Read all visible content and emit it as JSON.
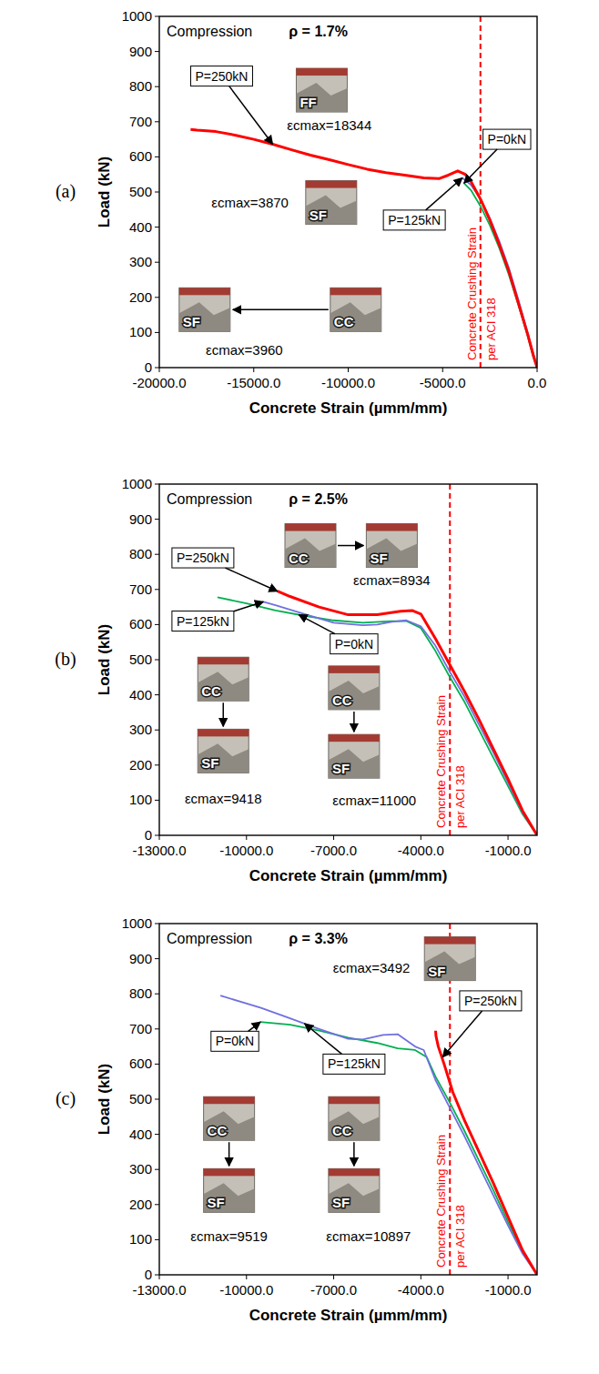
{
  "chart_data": [
    {
      "type": "line",
      "panel_label": "(a)",
      "title": "Compression",
      "subtitle": "ρ = 1.7%",
      "x_label": "Concrete Strain (µmm/mm)",
      "y_label": "Load (kN)",
      "xlim": [
        -20000,
        0
      ],
      "ylim": [
        0,
        1000
      ],
      "xticks": [
        {
          "value": -20000,
          "label": "-20000.0"
        },
        {
          "value": -15000,
          "label": "-15000.0"
        },
        {
          "value": -10000,
          "label": "-10000.0"
        },
        {
          "value": -5000,
          "label": "-5000.0"
        },
        {
          "value": 0,
          "label": "0.0"
        }
      ],
      "yticks": [
        0,
        100,
        200,
        300,
        400,
        500,
        600,
        700,
        800,
        900,
        1000
      ],
      "grid": false,
      "series": [
        {
          "name": "P=0kN",
          "color": "#00b050",
          "x": [
            0,
            -200,
            -500,
            -1000,
            -1500,
            -2000,
            -2500,
            -3000,
            -3500,
            -3870
          ],
          "values": [
            0,
            30,
            90,
            180,
            265,
            340,
            405,
            460,
            505,
            525
          ],
          "label_x": -1600,
          "label_y": 650,
          "arrow_x": -3870,
          "arrow_y": 525
        },
        {
          "name": "P=125kN",
          "color": "#7070e0",
          "x": [
            0,
            -200,
            -500,
            -1000,
            -1500,
            -2000,
            -2500,
            -3000,
            -3500,
            -3960
          ],
          "values": [
            0,
            40,
            100,
            195,
            285,
            360,
            425,
            480,
            520,
            540
          ],
          "label_x": -6500,
          "label_y": 420,
          "arrow_x": -3960,
          "arrow_y": 540
        },
        {
          "name": "P=250kN",
          "color": "#ff0000",
          "x": [
            0,
            -200,
            -500,
            -1000,
            -1500,
            -2000,
            -2500,
            -3000,
            -3500,
            -3800,
            -4200,
            -4700,
            -5200,
            -6000,
            -7000,
            -8000,
            -9000,
            -10000,
            -11000,
            -12000,
            -13000,
            -14000,
            -15000,
            -16000,
            -17000,
            -18000,
            -18344
          ],
          "values": [
            0,
            35,
            95,
            185,
            275,
            350,
            420,
            480,
            530,
            550,
            560,
            548,
            538,
            540,
            548,
            555,
            565,
            578,
            592,
            605,
            620,
            636,
            650,
            662,
            672,
            676,
            678
          ],
          "label_x": -16700,
          "label_y": 830,
          "arrow_x": -14000,
          "arrow_y": 636
        }
      ],
      "vlines": [
        {
          "x": -3000,
          "label": "Concrete Crushing Strain per ACI 318"
        }
      ],
      "annotations": [
        {
          "text": "εcmax=18344",
          "x": -11000,
          "y": 675
        },
        {
          "text": "εcmax=3870",
          "x": -15200,
          "y": 455
        },
        {
          "text": "εcmax=3960",
          "x": -15500,
          "y": 35
        }
      ],
      "photo_groups": [
        {
          "photos": [
            {
              "label": "FF",
              "x": -11400,
              "y": 790
            }
          ]
        },
        {
          "photos": [
            {
              "label": "SF",
              "x": -10900,
              "y": 470
            }
          ]
        },
        {
          "photos": [
            {
              "label": "CC",
              "x": -9600,
              "y": 165
            },
            {
              "label": "SF",
              "x": -17600,
              "y": 165
            }
          ]
        }
      ]
    },
    {
      "type": "line",
      "panel_label": "(b)",
      "title": "Compression",
      "subtitle": "ρ = 2.5%",
      "x_label": "Concrete Strain (µmm/mm)",
      "y_label": "Load (kN)",
      "xlim": [
        -13000,
        0
      ],
      "ylim": [
        0,
        1000
      ],
      "xticks": [
        {
          "value": -13000,
          "label": "-13000.0"
        },
        {
          "value": -10000,
          "label": "-10000.0"
        },
        {
          "value": -7000,
          "label": "-7000.0"
        },
        {
          "value": -4000,
          "label": "-4000.0"
        },
        {
          "value": -1000,
          "label": "-1000.0"
        }
      ],
      "yticks": [
        0,
        100,
        200,
        300,
        400,
        500,
        600,
        700,
        800,
        900,
        1000
      ],
      "grid": false,
      "series": [
        {
          "name": "P=0kN",
          "color": "#00b050",
          "x": [
            0,
            -500,
            -1000,
            -1500,
            -2000,
            -2500,
            -3000,
            -3500,
            -4000,
            -4500,
            -5000,
            -6000,
            -7000,
            -8000,
            -9000,
            -10000,
            -11000
          ],
          "values": [
            0,
            60,
            140,
            220,
            300,
            380,
            450,
            525,
            590,
            610,
            610,
            605,
            612,
            625,
            640,
            660,
            678
          ],
          "label_x": -6300,
          "label_y": 545,
          "arrow_x": -8200,
          "arrow_y": 628
        },
        {
          "name": "P=125kN",
          "color": "#7070e0",
          "x": [
            0,
            -500,
            -1000,
            -1500,
            -2000,
            -2500,
            -3000,
            -3500,
            -4000,
            -4500,
            -5000,
            -5500,
            -6000,
            -7000,
            -8000,
            -9000,
            -9418
          ],
          "values": [
            0,
            65,
            150,
            235,
            315,
            395,
            465,
            540,
            595,
            612,
            608,
            600,
            598,
            605,
            630,
            655,
            665
          ],
          "label_x": -11500,
          "label_y": 610,
          "arrow_x": -9418,
          "arrow_y": 665
        },
        {
          "name": "P=250kN",
          "color": "#ff0000",
          "x": [
            0,
            -500,
            -1000,
            -1500,
            -2000,
            -2500,
            -3000,
            -3500,
            -4000,
            -4300,
            -4700,
            -5500,
            -6500,
            -7500,
            -8500,
            -8934
          ],
          "values": [
            0,
            70,
            160,
            245,
            330,
            410,
            485,
            560,
            630,
            640,
            638,
            628,
            628,
            650,
            680,
            695
          ],
          "label_x": -11500,
          "label_y": 790,
          "arrow_x": -8934,
          "arrow_y": 695
        }
      ],
      "vlines": [
        {
          "x": -3000,
          "label": "Concrete Crushing Strain per ACI 318"
        }
      ],
      "annotations": [
        {
          "text": "εcmax=8934",
          "x": -5000,
          "y": 712
        },
        {
          "text": "εcmax=9418",
          "x": -10800,
          "y": 90
        },
        {
          "text": "εcmax=11000",
          "x": -5600,
          "y": 85
        }
      ],
      "photo_groups": [
        {
          "photos": [
            {
              "label": "CC",
              "x": -7800,
              "y": 825
            },
            {
              "label": "SF",
              "x": -5000,
              "y": 825
            }
          ]
        },
        {
          "photos": [
            {
              "label": "CC",
              "x": -10800,
              "y": 445
            },
            {
              "label": "SF",
              "x": -10800,
              "y": 240
            }
          ]
        },
        {
          "photos": [
            {
              "label": "CC",
              "x": -6300,
              "y": 420
            },
            {
              "label": "SF",
              "x": -6300,
              "y": 225
            }
          ]
        }
      ]
    },
    {
      "type": "line",
      "panel_label": "(c)",
      "title": "Compression",
      "subtitle": "ρ = 3.3%",
      "x_label": "Concrete Strain (µmm/mm)",
      "y_label": "Load (kN)",
      "xlim": [
        -13000,
        0
      ],
      "ylim": [
        0,
        1000
      ],
      "xticks": [
        {
          "value": -13000,
          "label": "-13000.0"
        },
        {
          "value": -10000,
          "label": "-10000.0"
        },
        {
          "value": -7000,
          "label": "-7000.0"
        },
        {
          "value": -4000,
          "label": "-4000.0"
        },
        {
          "value": -1000,
          "label": "-1000.0"
        }
      ],
      "yticks": [
        0,
        100,
        200,
        300,
        400,
        500,
        600,
        700,
        800,
        900,
        1000
      ],
      "grid": false,
      "series": [
        {
          "name": "P=0kN",
          "color": "#00b050",
          "x": [
            0,
            -500,
            -1000,
            -1500,
            -2000,
            -2500,
            -3000,
            -3500,
            -3800,
            -4200,
            -4800,
            -5500,
            -6500,
            -7500,
            -8500,
            -9519
          ],
          "values": [
            0,
            65,
            150,
            240,
            325,
            410,
            490,
            565,
            620,
            640,
            645,
            660,
            675,
            695,
            712,
            720
          ],
          "label_x": -10400,
          "label_y": 665,
          "arrow_x": -9519,
          "arrow_y": 720
        },
        {
          "name": "P=125kN",
          "color": "#7070e0",
          "x": [
            0,
            -500,
            -1000,
            -1500,
            -2000,
            -2500,
            -3000,
            -3500,
            -3900,
            -4200,
            -4800,
            -5300,
            -6000,
            -6500,
            -7500,
            -8500,
            -9500,
            -10897
          ],
          "values": [
            0,
            60,
            140,
            225,
            310,
            395,
            475,
            555,
            640,
            650,
            685,
            683,
            670,
            672,
            700,
            730,
            760,
            795
          ],
          "label_x": -6300,
          "label_y": 600,
          "arrow_x": -8000,
          "arrow_y": 715
        },
        {
          "name": "P=250kN",
          "color": "#ff0000",
          "x": [
            0,
            -500,
            -1000,
            -1500,
            -2000,
            -2500,
            -2900,
            -3200,
            -3400,
            -3480,
            -3492
          ],
          "values": [
            0,
            70,
            165,
            260,
            350,
            440,
            520,
            600,
            650,
            680,
            695
          ],
          "label_x": -1600,
          "label_y": 780,
          "arrow_x": -3250,
          "arrow_y": 620
        }
      ],
      "vlines": [
        {
          "x": -3000,
          "label": "Concrete Crushing Strain per ACI 318"
        }
      ],
      "annotations": [
        {
          "text": "εcmax=3492",
          "x": -5700,
          "y": 860
        },
        {
          "text": "εcmax=9519",
          "x": -10600,
          "y": 95
        },
        {
          "text": "εcmax=10897",
          "x": -5800,
          "y": 95
        }
      ],
      "photo_groups": [
        {
          "photos": [
            {
              "label": "SF",
              "x": -3000,
              "y": 900
            }
          ]
        },
        {
          "photos": [
            {
              "label": "CC",
              "x": -10600,
              "y": 445
            },
            {
              "label": "SF",
              "x": -10600,
              "y": 240
            }
          ]
        },
        {
          "photos": [
            {
              "label": "CC",
              "x": -6300,
              "y": 445
            },
            {
              "label": "SF",
              "x": -6300,
              "y": 240
            }
          ]
        }
      ]
    }
  ]
}
